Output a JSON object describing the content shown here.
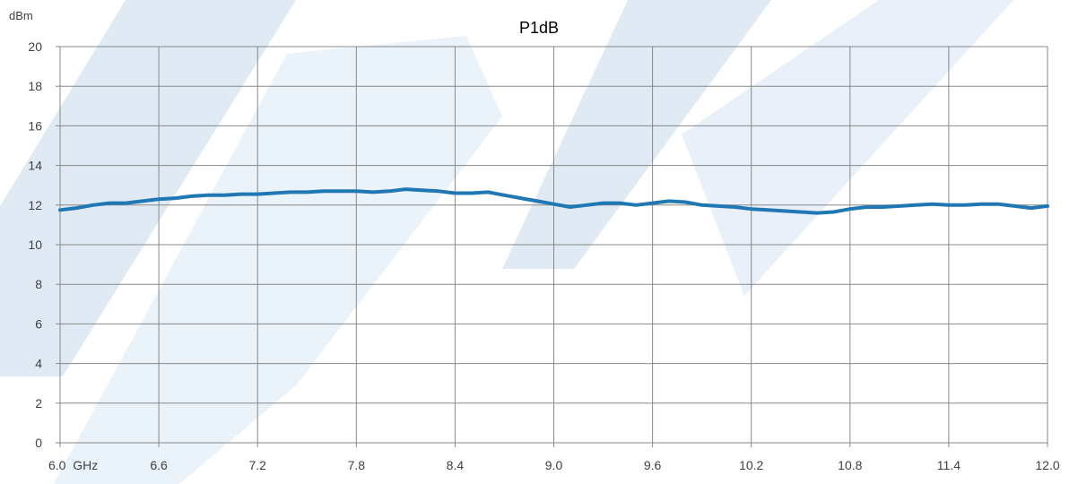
{
  "chart_data": {
    "type": "line",
    "title": "P1dB",
    "ylabel": "dBm",
    "xlabel": "",
    "x_tick_labels": [
      "6.0  GHz",
      "6.6",
      "7.2",
      "7.8",
      "8.4",
      "9.0",
      "9.6",
      "10.2",
      "10.8",
      "11.4",
      "12.0"
    ],
    "y_tick_labels": [
      "0",
      "2",
      "4",
      "6",
      "8",
      "10",
      "12",
      "14",
      "16",
      "18",
      "20"
    ],
    "xlim": [
      6.0,
      12.0
    ],
    "ylim": [
      0,
      20
    ],
    "grid": true,
    "legend": "none",
    "colors": {
      "line": "#1f77b4",
      "grid": "#888888",
      "watermark": "#dbe7f3"
    },
    "series": [
      {
        "x": [
          6.0,
          6.1,
          6.2,
          6.3,
          6.4,
          6.5,
          6.6,
          6.7,
          6.8,
          6.9,
          7.0,
          7.1,
          7.2,
          7.3,
          7.4,
          7.5,
          7.6,
          7.7,
          7.8,
          7.9,
          8.0,
          8.1,
          8.2,
          8.3,
          8.4,
          8.5,
          8.6,
          8.7,
          8.8,
          8.9,
          9.0,
          9.1,
          9.2,
          9.3,
          9.4,
          9.5,
          9.6,
          9.7,
          9.8,
          9.9,
          10.0,
          10.1,
          10.2,
          10.3,
          10.4,
          10.5,
          10.6,
          10.7,
          10.8,
          10.9,
          11.0,
          11.1,
          11.2,
          11.3,
          11.4,
          11.5,
          11.6,
          11.7,
          11.8,
          11.9,
          12.0
        ],
        "y": [
          11.75,
          11.85,
          12.0,
          12.1,
          12.1,
          12.2,
          12.3,
          12.35,
          12.45,
          12.5,
          12.5,
          12.55,
          12.55,
          12.6,
          12.65,
          12.65,
          12.7,
          12.7,
          12.7,
          12.65,
          12.7,
          12.8,
          12.75,
          12.7,
          12.6,
          12.6,
          12.65,
          12.5,
          12.35,
          12.2,
          12.05,
          11.9,
          12.0,
          12.1,
          12.1,
          12.0,
          12.1,
          12.2,
          12.15,
          12.0,
          11.95,
          11.9,
          11.8,
          11.75,
          11.7,
          11.65,
          11.6,
          11.65,
          11.8,
          11.9,
          11.9,
          11.95,
          12.0,
          12.05,
          12.0,
          12.0,
          12.05,
          12.05,
          11.95,
          11.85,
          11.95
        ]
      }
    ]
  }
}
